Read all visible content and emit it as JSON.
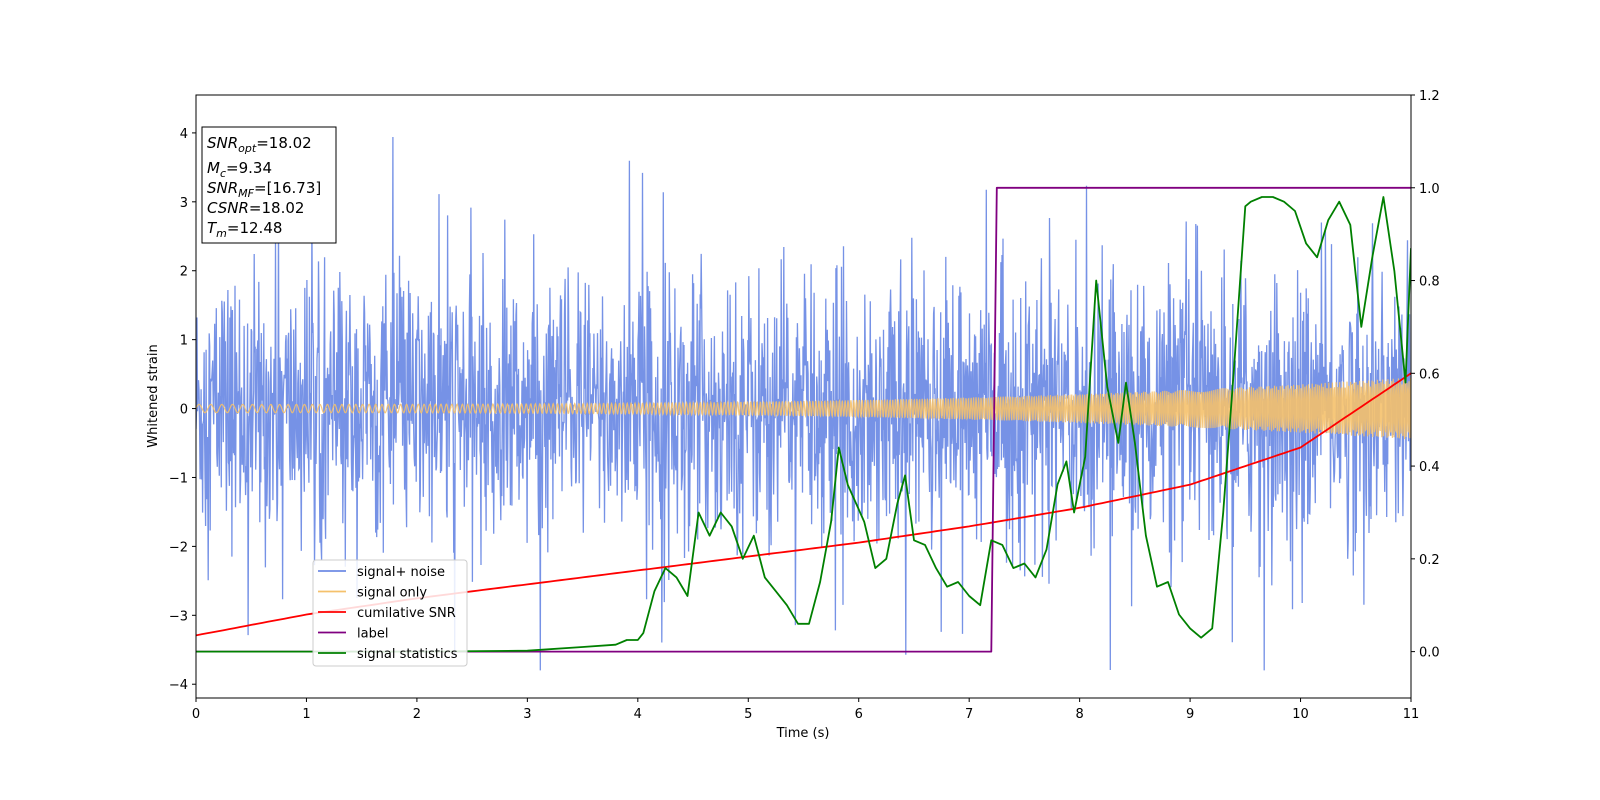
{
  "chart_data": {
    "type": "line",
    "xlabel": "Time (s)",
    "ylabel": "Whitened strain",
    "xlim": [
      0,
      11
    ],
    "ylim": [
      -4.2,
      4.55
    ],
    "y2lim": [
      -0.1,
      1.2
    ],
    "xticks": [
      0,
      1,
      2,
      3,
      4,
      5,
      6,
      7,
      8,
      9,
      10,
      11
    ],
    "yticks": [
      -4,
      -3,
      -2,
      -1,
      0,
      1,
      2,
      3,
      4
    ],
    "y2ticks": [
      0.0,
      0.2,
      0.4,
      0.6,
      0.8,
      1.0,
      1.2
    ],
    "xtick_labels": [
      "0",
      "1",
      "2",
      "3",
      "4",
      "5",
      "6",
      "7",
      "8",
      "9",
      "10",
      "11"
    ],
    "ytick_labels": [
      "−4",
      "−3",
      "−2",
      "−1",
      "0",
      "1",
      "2",
      "3",
      "4"
    ],
    "y2tick_labels": [
      "0.0",
      "0.2",
      "0.4",
      "0.6",
      "0.8",
      "1.0",
      "1.2"
    ],
    "legend_placement": "lower-left",
    "grid": false,
    "series": [
      {
        "name": "signal+ noise",
        "axis": "left",
        "color": "#6f8ce5",
        "description_points": "noise band approximately ±1.5 with spikes up to 4.2 and down to -3.8"
      },
      {
        "name": "signal only",
        "axis": "left",
        "color": "#f5c16c",
        "amplitude_start": 0.06,
        "amplitude_end": 0.45
      },
      {
        "name": "cumilative SNR",
        "axis": "right",
        "color": "#ff0000",
        "x": [
          0,
          1,
          2,
          3,
          4,
          5,
          6,
          7,
          8,
          9,
          10,
          11
        ],
        "y": [
          0.035,
          0.08,
          0.115,
          0.145,
          0.175,
          0.205,
          0.235,
          0.27,
          0.31,
          0.36,
          0.44,
          0.6
        ]
      },
      {
        "name": "label",
        "axis": "right",
        "color": "#800080",
        "x": [
          0,
          7.2,
          7.25,
          11
        ],
        "y": [
          0.0,
          0.0,
          1.0,
          1.0
        ]
      },
      {
        "name": "signal statistics",
        "axis": "right",
        "color": "#008000",
        "x": [
          0,
          1,
          2,
          3,
          3.5,
          3.8,
          3.9,
          4.0,
          4.05,
          4.15,
          4.25,
          4.35,
          4.45,
          4.55,
          4.65,
          4.75,
          4.85,
          4.95,
          5.05,
          5.15,
          5.25,
          5.35,
          5.45,
          5.55,
          5.65,
          5.75,
          5.82,
          5.9,
          6.05,
          6.15,
          6.25,
          6.35,
          6.42,
          6.5,
          6.6,
          6.7,
          6.8,
          6.9,
          7.0,
          7.1,
          7.2,
          7.3,
          7.4,
          7.5,
          7.6,
          7.7,
          7.8,
          7.88,
          7.95,
          8.05,
          8.15,
          8.25,
          8.35,
          8.42,
          8.5,
          8.6,
          8.7,
          8.8,
          8.9,
          9.0,
          9.1,
          9.2,
          9.3,
          9.4,
          9.5,
          9.55,
          9.65,
          9.75,
          9.85,
          9.95,
          10.05,
          10.15,
          10.25,
          10.35,
          10.45,
          10.55,
          10.65,
          10.75,
          10.85,
          10.95,
          11.0
        ],
        "y": [
          0.0,
          0.0,
          0.0,
          0.002,
          0.01,
          0.015,
          0.025,
          0.025,
          0.04,
          0.13,
          0.18,
          0.16,
          0.12,
          0.3,
          0.25,
          0.3,
          0.27,
          0.2,
          0.25,
          0.16,
          0.13,
          0.1,
          0.06,
          0.06,
          0.15,
          0.28,
          0.44,
          0.36,
          0.28,
          0.18,
          0.2,
          0.32,
          0.38,
          0.24,
          0.23,
          0.18,
          0.14,
          0.15,
          0.12,
          0.1,
          0.24,
          0.23,
          0.18,
          0.19,
          0.16,
          0.22,
          0.36,
          0.41,
          0.3,
          0.42,
          0.8,
          0.57,
          0.45,
          0.58,
          0.45,
          0.25,
          0.14,
          0.15,
          0.08,
          0.05,
          0.03,
          0.05,
          0.3,
          0.62,
          0.96,
          0.97,
          0.98,
          0.98,
          0.97,
          0.95,
          0.88,
          0.85,
          0.93,
          0.97,
          0.92,
          0.7,
          0.85,
          0.98,
          0.82,
          0.58,
          0.87
        ]
      }
    ],
    "annotation_box": {
      "lines": [
        {
          "var": "SNR",
          "sub": "opt",
          "val": "=18.02"
        },
        {
          "var": "M",
          "sub": "c",
          "val": "=9.34"
        },
        {
          "var": "SNR",
          "sub": "MF",
          "val": "=[16.73]"
        },
        {
          "var": "CSNR",
          "sub": "",
          "val": "=18.02"
        },
        {
          "var": "T",
          "sub": "m",
          "val": "=12.48"
        }
      ]
    }
  }
}
